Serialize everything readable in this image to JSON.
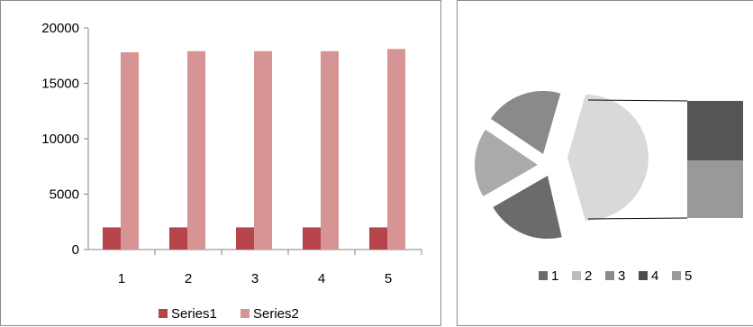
{
  "chart_data": [
    {
      "type": "bar",
      "categories": [
        "1",
        "2",
        "3",
        "4",
        "5"
      ],
      "series": [
        {
          "name": "Series1",
          "values": [
            2000,
            2000,
            2000,
            2000,
            2000
          ],
          "color": "#b5454a"
        },
        {
          "name": "Series2",
          "values": [
            17800,
            17900,
            17900,
            17900,
            18100
          ],
          "color": "#d69594"
        }
      ],
      "ylim": [
        0,
        20000
      ],
      "yticks": [
        "0",
        "5000",
        "10000",
        "15000",
        "20000"
      ],
      "legend": "bottom",
      "grid": false
    },
    {
      "type": "pie",
      "subtype": "pie-of-bar",
      "labels": [
        "1",
        "2",
        "3",
        "4",
        "5"
      ],
      "colors": [
        "#6b6b6b",
        "#bdbdbd",
        "#8a8a8a",
        "#4d4d4d",
        "#9a9a9a"
      ],
      "main_slices": [
        {
          "label": "1",
          "color": "#6b6b6b"
        },
        {
          "label": "3",
          "color": "#aaaaaa"
        },
        {
          "label": "3",
          "color": "#8a8a8a"
        },
        {
          "label": "2",
          "color": "#d9d9d9"
        }
      ],
      "secondary_bar": [
        {
          "label": "4",
          "color": "#555555"
        },
        {
          "label": "5",
          "color": "#999999"
        }
      ],
      "legend": "bottom"
    }
  ]
}
